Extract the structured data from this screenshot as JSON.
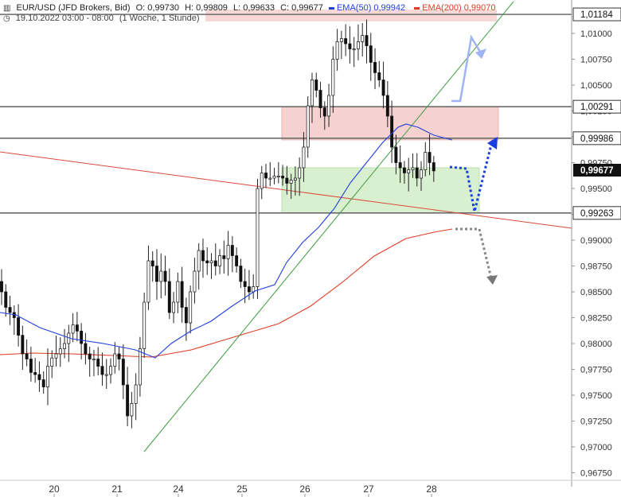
{
  "header": {
    "symbol": "EUR/USD (JFD Brokers, Bid)",
    "open": "O: 0,99730",
    "high": "H: 0,99809",
    "low": "L: 0,99633",
    "close": "C: 0,99677",
    "ema50_label": "EMA(50)",
    "ema50_value": "0,99942",
    "ema200_label": "EMA(200)",
    "ema200_value": "0,99070",
    "date_range": "19.10.2022 03:00 - 08:00",
    "timeframe": "(1 Woche, 1 Stunde)",
    "colors": {
      "ema50": "#1f3fe0",
      "ema200": "#e03b24"
    }
  },
  "chart_data": {
    "type": "candlestick",
    "title": "EUR/USD (JFD Brokers, Bid)",
    "y_range": [
      0.965,
      1.0125
    ],
    "y_ticks": [
      "1,01000",
      "1,00750",
      "1,00500",
      "1,00250",
      "1,00000",
      "0,99750",
      "0,99500",
      "0,99250",
      "0,99000",
      "0,98750",
      "0,98500",
      "0,98250",
      "0,98000",
      "0,97750",
      "0,97500",
      "0,97250",
      "0,97000",
      "0,96750"
    ],
    "y_tick_values": [
      1.01,
      1.0075,
      1.005,
      1.0025,
      1.0,
      0.9975,
      0.995,
      0.9925,
      0.99,
      0.9875,
      0.985,
      0.9825,
      0.98,
      0.9775,
      0.975,
      0.9725,
      0.97,
      0.9675
    ],
    "x_ticks": [
      "20",
      "21",
      "24",
      "25",
      "26",
      "27",
      "28"
    ],
    "x_tick_index": [
      14,
      28,
      42,
      56,
      70,
      84,
      98
    ],
    "price_path": [
      0.985,
      0.9835,
      0.983,
      0.9825,
      0.9808,
      0.979,
      0.9785,
      0.9772,
      0.977,
      0.9765,
      0.9758,
      0.9778,
      0.9786,
      0.979,
      0.9795,
      0.98,
      0.981,
      0.9818,
      0.9812,
      0.98,
      0.979,
      0.9785,
      0.9785,
      0.9778,
      0.977,
      0.977,
      0.9778,
      0.979,
      0.9785,
      0.976,
      0.973,
      0.9742,
      0.976,
      0.9795,
      0.984,
      0.988,
      0.9875,
      0.986,
      0.987,
      0.986,
      0.983,
      0.984,
      0.986,
      0.9835,
      0.982,
      0.985,
      0.987,
      0.989,
      0.988,
      0.9878,
      0.988,
      0.9875,
      0.9885,
      0.9882,
      0.9895,
      0.9885,
      0.9875,
      0.986,
      0.9855,
      0.985,
      0.9855,
      0.995,
      0.9965,
      0.996,
      0.996,
      0.9962,
      0.9962,
      0.996,
      0.9955,
      0.9958,
      0.996,
      0.997,
      0.999,
      1.003,
      1.0055,
      1.0045,
      1.0028,
      1.002,
      1.004,
      1.0075,
      1.0092,
      1.0095,
      1.009,
      1.0085,
      1.0085,
      1.0092,
      1.0098,
      1.0088,
      1.0072,
      1.0062,
      1.0055,
      1.004,
      1.002,
      0.999,
      0.9975,
      0.997,
      0.9965,
      0.9968,
      0.997,
      0.996,
      0.9968,
      0.9985,
      0.9975,
      0.9967
    ],
    "last_price": "0,99677",
    "levels": [
      {
        "value": 1.01184,
        "label": "1,01184"
      },
      {
        "value": 1.00291,
        "label": "1,00291"
      },
      {
        "value": 0.99986,
        "label": "0,99986"
      },
      {
        "value": 0.99263,
        "label": "0,99263"
      }
    ],
    "resistance_zone": [
      0.9997,
      1.0029
    ],
    "support_zone": [
      0.99263,
      0.997
    ],
    "ema50": {
      "name": "EMA(50)",
      "color": "#1f3fe0"
    },
    "ema200": {
      "name": "EMA(200)",
      "color": "#e03b24"
    },
    "grid": false
  }
}
